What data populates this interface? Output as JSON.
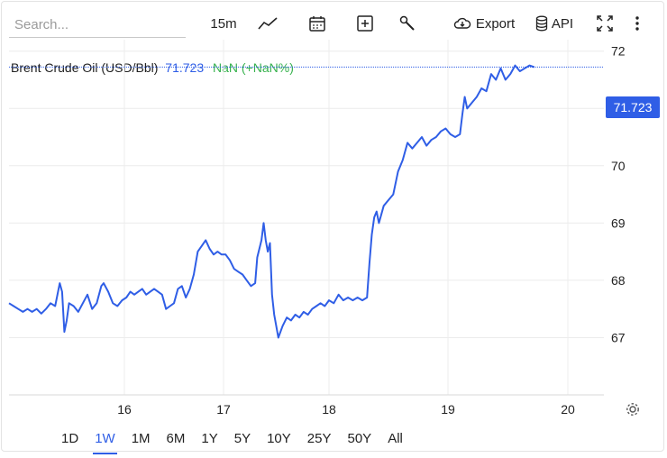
{
  "toolbar": {
    "search_placeholder": "Search...",
    "interval": "15m",
    "export_label": "Export",
    "api_label": "API"
  },
  "legend": {
    "name": "Brent Crude Oil (USD/Bbl)",
    "price": "71.723",
    "change": "NaN (+NaN%)"
  },
  "price_tag": "71.723",
  "ranges": [
    "1D",
    "1W",
    "1M",
    "6M",
    "1Y",
    "5Y",
    "10Y",
    "25Y",
    "50Y",
    "All"
  ],
  "active_range": "1W",
  "colors": {
    "line": "#2f5ee6",
    "change": "#37b24d",
    "grid": "#ececec"
  },
  "chart_data": {
    "type": "line",
    "title": "",
    "xlabel": "",
    "ylabel": "",
    "x_ticks": [
      "16",
      "17",
      "18",
      "19",
      "20"
    ],
    "y_ticks": [
      "67",
      "68",
      "69",
      "70",
      "71",
      "72"
    ],
    "ylim": [
      66.0,
      72.2
    ],
    "xlim": [
      15.0,
      20.3
    ],
    "grid": true,
    "last_price": 71.723,
    "series": [
      {
        "values": [
          [
            15.0,
            67.6
          ],
          [
            15.04,
            67.55
          ],
          [
            15.08,
            67.5
          ],
          [
            15.12,
            67.45
          ],
          [
            15.16,
            67.5
          ],
          [
            15.2,
            67.45
          ],
          [
            15.24,
            67.5
          ],
          [
            15.28,
            67.42
          ],
          [
            15.32,
            67.5
          ],
          [
            15.36,
            67.6
          ],
          [
            15.4,
            67.55
          ],
          [
            15.44,
            67.95
          ],
          [
            15.46,
            67.8
          ],
          [
            15.48,
            67.1
          ],
          [
            15.5,
            67.3
          ],
          [
            15.52,
            67.6
          ],
          [
            15.56,
            67.55
          ],
          [
            15.6,
            67.45
          ],
          [
            15.64,
            67.6
          ],
          [
            15.68,
            67.75
          ],
          [
            15.72,
            67.5
          ],
          [
            15.76,
            67.6
          ],
          [
            15.8,
            67.9
          ],
          [
            15.82,
            67.95
          ],
          [
            15.86,
            67.8
          ],
          [
            15.9,
            67.6
          ],
          [
            15.94,
            67.55
          ],
          [
            15.98,
            67.65
          ],
          [
            16.02,
            67.7
          ],
          [
            16.06,
            67.8
          ],
          [
            16.1,
            67.75
          ],
          [
            16.14,
            67.8
          ],
          [
            16.18,
            67.85
          ],
          [
            16.22,
            67.75
          ],
          [
            16.26,
            67.8
          ],
          [
            16.3,
            67.85
          ],
          [
            16.34,
            67.8
          ],
          [
            16.38,
            67.75
          ],
          [
            16.42,
            67.5
          ],
          [
            16.46,
            67.55
          ],
          [
            16.5,
            67.6
          ],
          [
            16.54,
            67.85
          ],
          [
            16.58,
            67.9
          ],
          [
            16.62,
            67.7
          ],
          [
            16.66,
            67.85
          ],
          [
            16.7,
            68.1
          ],
          [
            16.74,
            68.5
          ],
          [
            16.78,
            68.6
          ],
          [
            16.82,
            68.7
          ],
          [
            16.86,
            68.55
          ],
          [
            16.9,
            68.45
          ],
          [
            16.94,
            68.5
          ],
          [
            16.98,
            68.45
          ],
          [
            17.02,
            68.45
          ],
          [
            17.06,
            68.35
          ],
          [
            17.1,
            68.2
          ],
          [
            17.14,
            68.15
          ],
          [
            17.18,
            68.1
          ],
          [
            17.22,
            68.0
          ],
          [
            17.26,
            67.9
          ],
          [
            17.3,
            67.95
          ],
          [
            17.32,
            68.4
          ],
          [
            17.36,
            68.7
          ],
          [
            17.38,
            69.0
          ],
          [
            17.4,
            68.7
          ],
          [
            17.42,
            68.5
          ],
          [
            17.44,
            68.65
          ],
          [
            17.46,
            67.75
          ],
          [
            17.48,
            67.4
          ],
          [
            17.5,
            67.2
          ],
          [
            17.52,
            67.0
          ],
          [
            17.56,
            67.2
          ],
          [
            17.6,
            67.35
          ],
          [
            17.64,
            67.3
          ],
          [
            17.68,
            67.4
          ],
          [
            17.72,
            67.35
          ],
          [
            17.76,
            67.45
          ],
          [
            17.8,
            67.4
          ],
          [
            17.84,
            67.5
          ],
          [
            17.88,
            67.55
          ],
          [
            17.92,
            67.6
          ],
          [
            17.96,
            67.55
          ],
          [
            18.0,
            67.65
          ],
          [
            18.04,
            67.6
          ],
          [
            18.08,
            67.75
          ],
          [
            18.12,
            67.65
          ],
          [
            18.16,
            67.7
          ],
          [
            18.2,
            67.65
          ],
          [
            18.24,
            67.7
          ],
          [
            18.28,
            67.65
          ],
          [
            18.32,
            67.7
          ],
          [
            18.34,
            68.3
          ],
          [
            18.36,
            68.8
          ],
          [
            18.38,
            69.1
          ],
          [
            18.4,
            69.2
          ],
          [
            18.42,
            69.0
          ],
          [
            18.46,
            69.3
          ],
          [
            18.5,
            69.4
          ],
          [
            18.54,
            69.5
          ],
          [
            18.58,
            69.9
          ],
          [
            18.62,
            70.1
          ],
          [
            18.66,
            70.4
          ],
          [
            18.7,
            70.3
          ],
          [
            18.74,
            70.4
          ],
          [
            18.78,
            70.5
          ],
          [
            18.82,
            70.35
          ],
          [
            18.86,
            70.45
          ],
          [
            18.9,
            70.5
          ],
          [
            18.94,
            70.6
          ],
          [
            18.98,
            70.65
          ],
          [
            19.02,
            70.55
          ],
          [
            19.06,
            70.5
          ],
          [
            19.1,
            70.55
          ],
          [
            19.12,
            70.9
          ],
          [
            19.14,
            71.2
          ],
          [
            19.16,
            71.0
          ],
          [
            19.2,
            71.1
          ],
          [
            19.24,
            71.2
          ],
          [
            19.28,
            71.35
          ],
          [
            19.32,
            71.3
          ],
          [
            19.36,
            71.6
          ],
          [
            19.4,
            71.5
          ],
          [
            19.44,
            71.7
          ],
          [
            19.48,
            71.5
          ],
          [
            19.52,
            71.6
          ],
          [
            19.56,
            71.75
          ],
          [
            19.6,
            71.65
          ],
          [
            19.64,
            71.7
          ],
          [
            19.68,
            71.75
          ],
          [
            19.72,
            71.72
          ]
        ]
      }
    ]
  }
}
